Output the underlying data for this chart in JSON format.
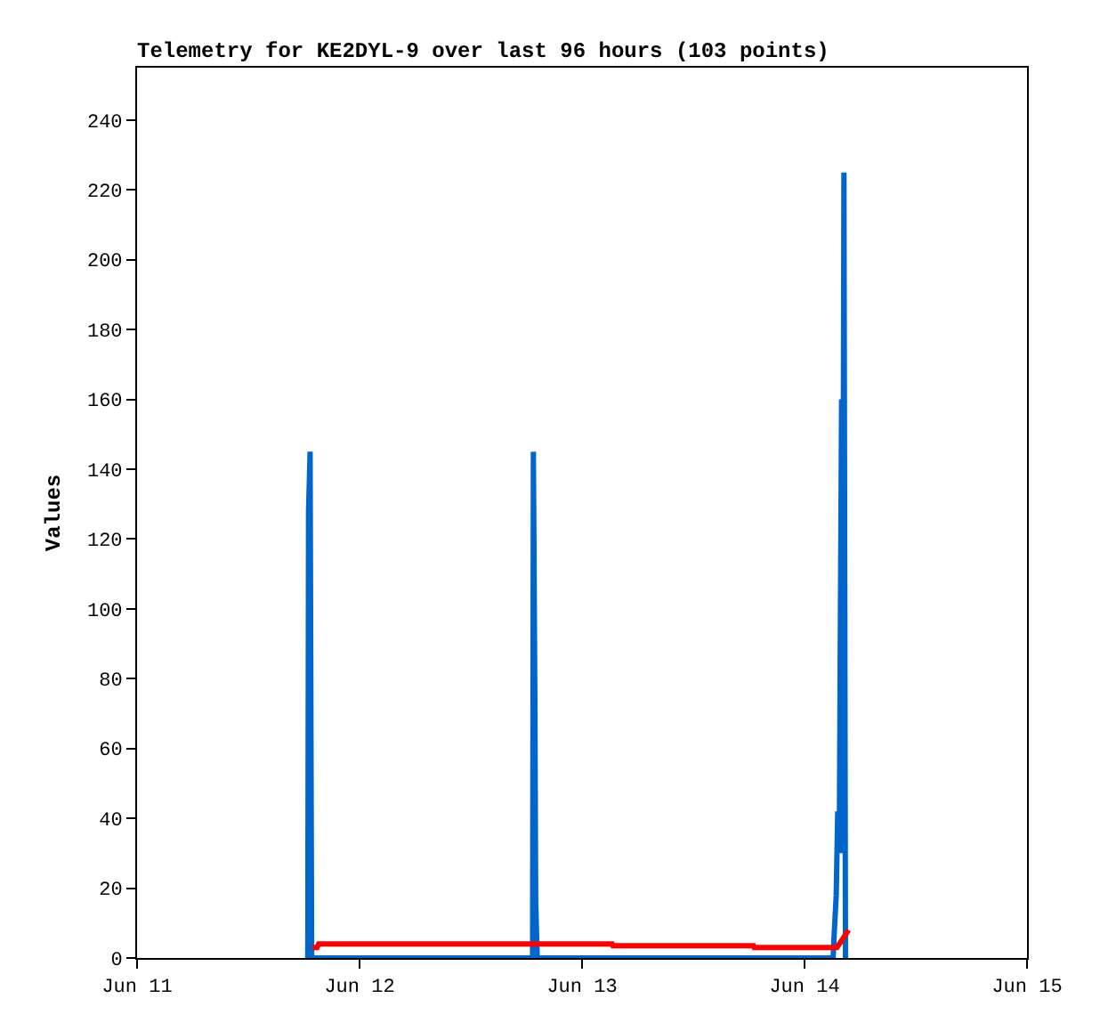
{
  "chart_data": {
    "type": "line",
    "title": "Telemetry for KE2DYL-9 over last 96 hours (103 points)",
    "ylabel": "Values",
    "series": [
      {
        "color": "#0066cc",
        "x": [
          "--06-11T18:25",
          "--06-11T18:30",
          "--06-11T18:40",
          "--06-11T18:50",
          "--06-12T18:40",
          "--06-12T18:45",
          "--06-12T18:55",
          "--06-12T19:00",
          "--06-12T19:10",
          "--06-14T03:05",
          "--06-14T03:10",
          "--06-14T03:25",
          "--06-14T03:35",
          "--06-14T03:45",
          "--06-14T03:50",
          "--06-14T04:00",
          "--06-14T04:05",
          "--06-14T04:15",
          "--06-14T04:25"
        ],
        "values": [
          0,
          128,
          145,
          0,
          0,
          145,
          72,
          16,
          0,
          0,
          5,
          18,
          42,
          30,
          80,
          160,
          30,
          225,
          0
        ]
      },
      {
        "color": "#ff0000",
        "x": [
          "--06-11T18:55",
          "--06-11T19:25",
          "--06-11T19:35",
          "--06-13T03:15",
          "--06-13T03:20",
          "--06-13T18:30",
          "--06-13T18:35",
          "--06-14T03:30",
          "--06-14T04:00",
          "--06-14T04:45"
        ],
        "values": [
          3,
          3,
          4,
          4,
          3.5,
          3.5,
          3,
          3,
          5,
          8
        ]
      }
    ],
    "xlim": [
      "--06-11",
      "--06-15"
    ],
    "xticks": [
      {
        "value": "--06-11",
        "label": "Jun 11"
      },
      {
        "value": "--06-12",
        "label": "Jun 12"
      },
      {
        "value": "--06-13",
        "label": "Jun 13"
      },
      {
        "value": "--06-14",
        "label": "Jun 14"
      },
      {
        "value": "--06-15",
        "label": "Jun 15"
      }
    ],
    "ylim": [
      0,
      255
    ],
    "yticks": [
      0,
      20,
      40,
      60,
      80,
      100,
      120,
      140,
      160,
      180,
      200,
      220,
      240
    ],
    "grid": false,
    "marker": "none",
    "line_style": "solid"
  }
}
